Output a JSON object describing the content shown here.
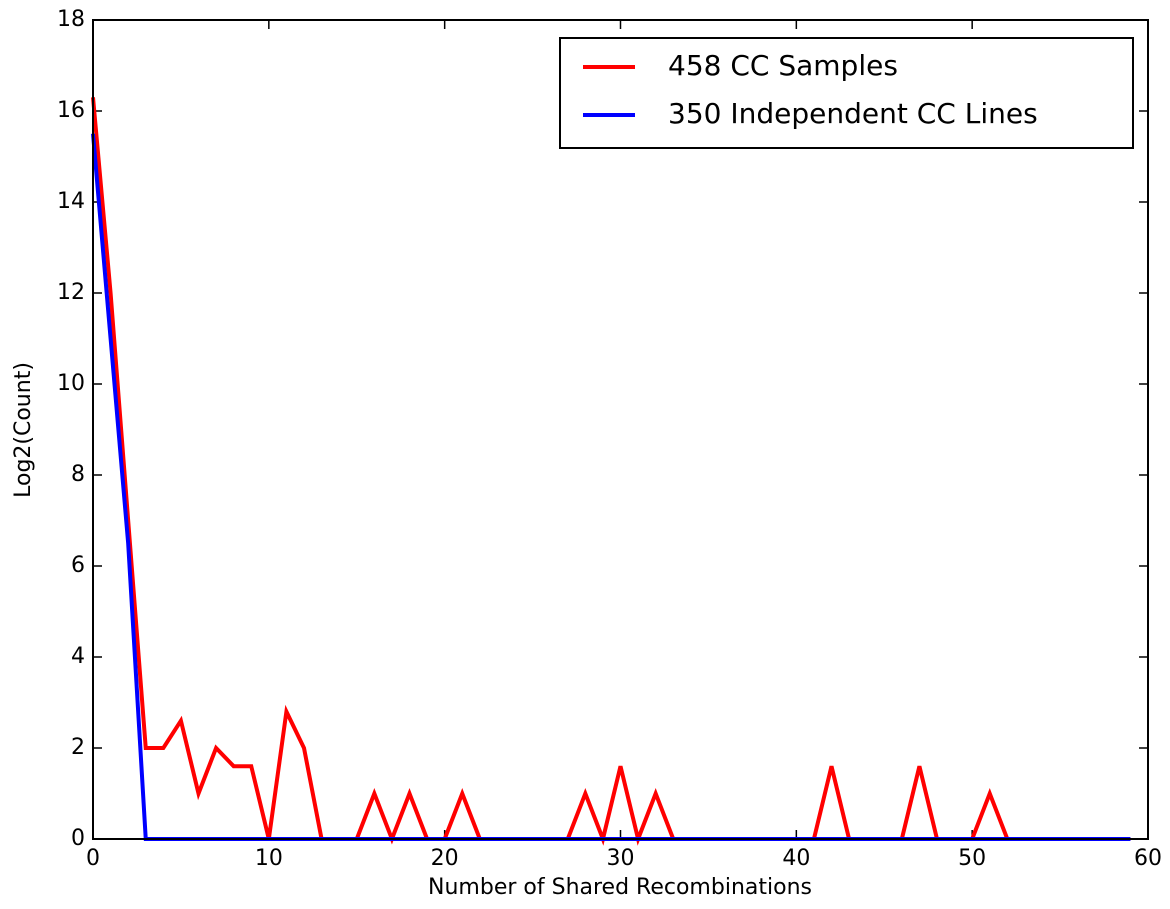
{
  "chart_data": {
    "type": "line",
    "x_label": "Number of Shared Recombinations",
    "y_label": "Log2(Count)",
    "x": [
      0,
      1,
      2,
      3,
      4,
      5,
      6,
      7,
      8,
      9,
      10,
      11,
      12,
      13,
      14,
      15,
      16,
      17,
      18,
      19,
      20,
      21,
      22,
      23,
      24,
      25,
      26,
      27,
      28,
      29,
      30,
      31,
      32,
      33,
      34,
      35,
      36,
      37,
      38,
      39,
      40,
      41,
      42,
      43,
      44,
      45,
      46,
      47,
      48,
      49,
      50,
      51,
      52,
      53,
      54,
      55,
      56,
      57,
      58,
      59
    ],
    "series": [
      {
        "name": "458 CC Samples",
        "color": "#ff0000",
        "values": [
          16.3,
          12,
          7,
          2,
          2,
          2.6,
          1,
          2,
          1.6,
          1.6,
          0,
          2.8,
          2,
          0,
          0,
          0,
          1,
          0,
          1,
          0,
          0,
          1,
          0,
          0,
          0,
          0,
          0,
          0,
          1,
          0,
          1.6,
          0,
          1,
          0,
          0,
          0,
          0,
          0,
          0,
          0,
          0,
          0,
          1.6,
          0,
          0,
          0,
          0,
          1.6,
          0,
          0,
          0,
          1,
          0,
          0,
          0,
          0,
          0,
          0,
          0,
          0
        ]
      },
      {
        "name": "350 Independent CC Lines",
        "color": "#0000ff",
        "values": [
          15.5,
          11,
          6.5,
          0,
          0,
          0,
          0,
          0,
          0,
          0,
          0,
          0,
          0,
          0,
          0,
          0,
          0,
          0,
          0,
          0,
          0,
          0,
          0,
          0,
          0,
          0,
          0,
          0,
          0,
          0,
          0,
          0,
          0,
          0,
          0,
          0,
          0,
          0,
          0,
          0,
          0,
          0,
          0,
          0,
          0,
          0,
          0,
          0,
          0,
          0,
          0,
          0,
          0,
          0,
          0,
          0,
          0,
          0,
          0,
          0
        ]
      }
    ],
    "xlim": [
      0,
      60
    ],
    "xticks": [
      0,
      10,
      20,
      30,
      40,
      50,
      60
    ],
    "ylim": [
      0,
      18
    ],
    "yticks": [
      0,
      2,
      4,
      6,
      8,
      10,
      12,
      14,
      16,
      18
    ],
    "grid": false,
    "legend": "upper right"
  }
}
